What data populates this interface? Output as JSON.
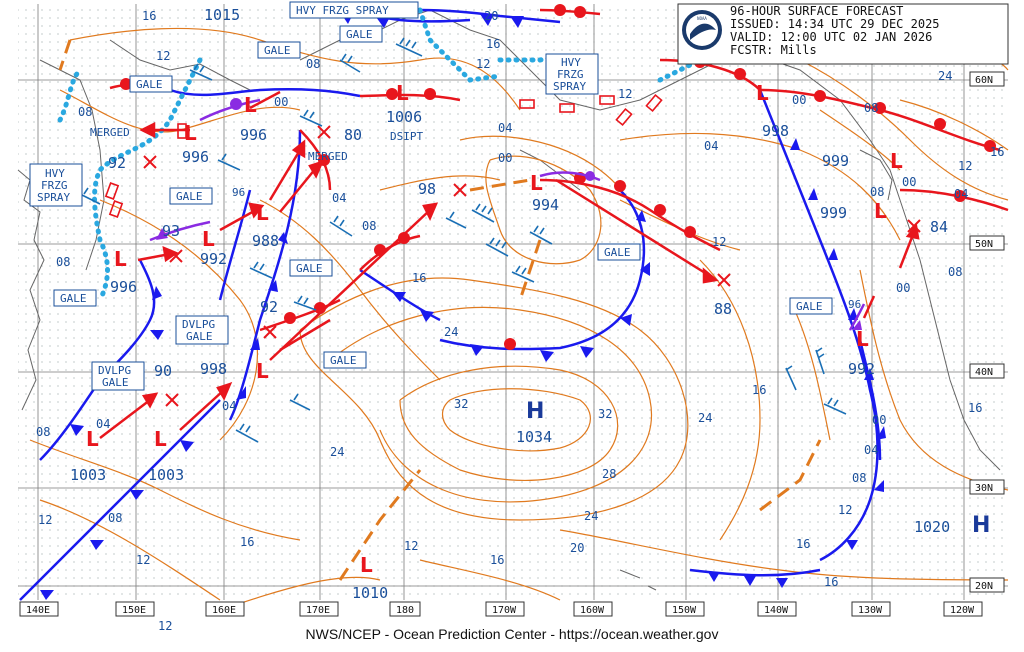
{
  "header": {
    "title": "96-HOUR SURFACE FORECAST",
    "issued": "ISSUED: 14:34 UTC 29 DEC 2025",
    "valid": "VALID:  12:00 UTC 02 JAN 2026",
    "forecaster": "FCSTR:  Mills",
    "logo_text": "NOAA"
  },
  "footer": "NWS/NCEP - Ocean Prediction Center - https://ocean.weather.gov",
  "lon_labels": [
    "140E",
    "150E",
    "160E",
    "170E",
    "180",
    "170W",
    "160W",
    "150W",
    "140W",
    "130W",
    "120W"
  ],
  "lat_labels": [
    "60N",
    "50N",
    "40N",
    "30N",
    "20N"
  ],
  "warnings": {
    "hvy_frzg_spray_top": "HVY FRZG SPRAY",
    "gale": "GALE",
    "hvy": "HVY",
    "frzg": "FRZG",
    "spray": "SPRAY",
    "dvlpg": "DVLPG",
    "merged": "MERGED",
    "dsipt": "DSIPT"
  },
  "centers": {
    "L": "L",
    "H": "H",
    "p1015": "1015",
    "p1006": "1006",
    "p996a": "996",
    "p996b": "996",
    "p996c": "996",
    "p992a": "92",
    "p980": "80",
    "p998a": "998",
    "p994": "994",
    "p998b": "98",
    "p999a": "999",
    "p999b": "999",
    "p984": "84",
    "p993": "93",
    "p992b": "992",
    "p988": "988",
    "p992c": "92",
    "p988b": "88",
    "p990": "90",
    "p998c": "998",
    "p992d": "992",
    "p996d": "96",
    "p1034": "1034",
    "p1003a": "1003",
    "p1003b": "1003",
    "p1010": "1010",
    "p1020": "1020",
    "p996e": "96"
  },
  "isobar_labels": {
    "i16a": "16",
    "i12a": "12",
    "i08a": "08",
    "i00a": "00",
    "i08b": "08",
    "i04a": "04",
    "i12b": "12",
    "i16b": "16",
    "i20a": "20",
    "i04b": "04",
    "i00b": "00",
    "i08c": "08",
    "i16c": "16",
    "i24a": "24",
    "i32a": "32",
    "i32b": "32",
    "i28": "28",
    "i24b": "24",
    "i20b": "20",
    "i24c": "24",
    "i16d": "16",
    "i12c": "12",
    "i16e": "16",
    "i12d": "12",
    "i08d": "08",
    "i04c": "04",
    "i08e": "08",
    "i12e": "12",
    "i04d": "04",
    "i08f": "08",
    "i12f": "12",
    "i16f": "16",
    "i24d": "24",
    "i04e": "04",
    "i12g": "12",
    "i08g": "08",
    "i00c": "00",
    "i00d": "00",
    "i08h": "08",
    "i12h": "12",
    "i04f": "04",
    "i16g": "16",
    "i24e": "24",
    "i00e": "00",
    "i16h": "16",
    "i12i": "12",
    "i04g": "04",
    "i08i": "08",
    "i00f": "00",
    "i16i": "16",
    "i08j": "08",
    "i12j": "12"
  }
}
